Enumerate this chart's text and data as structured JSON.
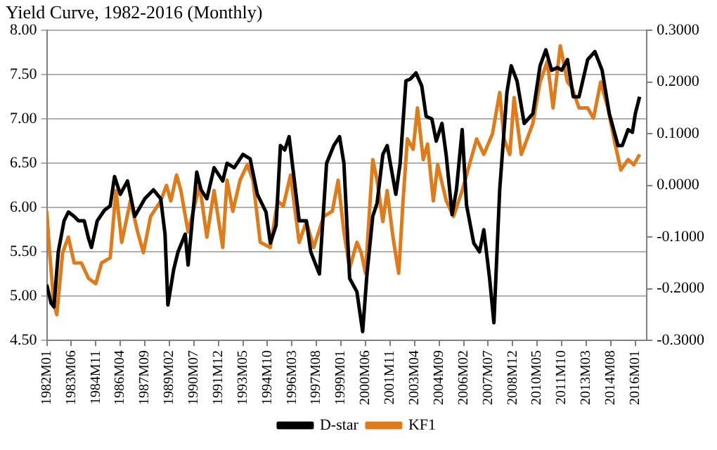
{
  "chart_data": {
    "type": "line",
    "title": "Yield Curve, 1982-2016 (Monthly)",
    "xlim": [
      "1982-01",
      "2016-09"
    ],
    "xticks": [
      {
        "value": "1982-01",
        "label": "1982M01"
      },
      {
        "value": "1983-06",
        "label": "1983M06"
      },
      {
        "value": "1984-11",
        "label": "1984M11"
      },
      {
        "value": "1986-04",
        "label": "1986M04"
      },
      {
        "value": "1987-09",
        "label": "1987M09"
      },
      {
        "value": "1989-02",
        "label": "1989M02"
      },
      {
        "value": "1990-07",
        "label": "1990M07"
      },
      {
        "value": "1991-12",
        "label": "1991M12"
      },
      {
        "value": "1993-05",
        "label": "1993M05"
      },
      {
        "value": "1994-10",
        "label": "1994M10"
      },
      {
        "value": "1996-03",
        "label": "1996M03"
      },
      {
        "value": "1997-08",
        "label": "1997M08"
      },
      {
        "value": "1999-01",
        "label": "1999M01"
      },
      {
        "value": "2000-06",
        "label": "2000M06"
      },
      {
        "value": "2001-11",
        "label": "2001M11"
      },
      {
        "value": "2003-04",
        "label": "2003M04"
      },
      {
        "value": "2004-09",
        "label": "2004M09"
      },
      {
        "value": "2006-02",
        "label": "2006M02"
      },
      {
        "value": "2007-07",
        "label": "2007M07"
      },
      {
        "value": "2008-12",
        "label": "2008M12"
      },
      {
        "value": "2010-05",
        "label": "2010M05"
      },
      {
        "value": "2011-10",
        "label": "2011M10"
      },
      {
        "value": "2013-03",
        "label": "2013M03"
      },
      {
        "value": "2014-08",
        "label": "2014M08"
      },
      {
        "value": "2016-01",
        "label": "2016M01"
      }
    ],
    "ylim": [
      4.5,
      8
    ],
    "yticks": [
      {
        "value": 4.5,
        "label": "4.50"
      },
      {
        "value": 5,
        "label": "5.00"
      },
      {
        "value": 5.5,
        "label": "5.50"
      },
      {
        "value": 6,
        "label": "6.00"
      },
      {
        "value": 6.5,
        "label": "6.50"
      },
      {
        "value": 7,
        "label": "7.00"
      },
      {
        "value": 7.5,
        "label": "7.50"
      },
      {
        "value": 8,
        "label": "8.00"
      }
    ],
    "y2lim": [
      -0.3,
      0.3
    ],
    "y2ticks": [
      {
        "value": -0.3,
        "label": "-0.3000"
      },
      {
        "value": -0.2,
        "label": "-0.2000"
      },
      {
        "value": -0.1,
        "label": "-0.1000"
      },
      {
        "value": 0,
        "label": "0.0000"
      },
      {
        "value": 0.1,
        "label": "0.1000"
      },
      {
        "value": 0.2,
        "label": "0.2000"
      },
      {
        "value": 0.3,
        "label": "0.3000"
      }
    ],
    "grid": "y",
    "legend": "bottom",
    "marker": "none",
    "line_style": "solid",
    "series": [
      {
        "name": "D-star",
        "color": "#000000",
        "x": [
          "1982-01",
          "1982-04",
          "1982-06",
          "1982-09",
          "1983-01",
          "1983-04",
          "1983-08",
          "1983-11",
          "1984-03",
          "1984-06",
          "1984-08",
          "1984-12",
          "1985-05",
          "1985-09",
          "1985-12",
          "1986-04",
          "1986-09",
          "1987-02",
          "1987-09",
          "1988-03",
          "1988-08",
          "1988-11",
          "1989-01",
          "1989-05",
          "1989-08",
          "1990-01",
          "1990-03",
          "1990-09",
          "1990-12",
          "1991-04",
          "1991-09",
          "1992-03",
          "1992-06",
          "1992-11",
          "1993-05",
          "1993-10",
          "1994-03",
          "1994-09",
          "1994-12",
          "1995-04",
          "1995-07",
          "1995-10",
          "1996-01",
          "1996-08",
          "1997-01",
          "1997-04",
          "1997-10",
          "1998-03",
          "1998-08",
          "1998-12",
          "1999-03",
          "1999-07",
          "1999-12",
          "2000-04",
          "2000-07",
          "2000-11",
          "2001-02",
          "2001-06",
          "2001-09",
          "2002-03",
          "2002-06",
          "2002-10",
          "2003-01",
          "2003-05",
          "2003-09",
          "2003-12",
          "2004-04",
          "2004-07",
          "2004-11",
          "2005-02",
          "2005-06",
          "2005-09",
          "2006-01",
          "2006-04",
          "2006-09",
          "2007-01",
          "2007-04",
          "2007-08",
          "2007-11",
          "2008-03",
          "2008-08",
          "2008-11",
          "2009-03",
          "2009-08",
          "2010-02",
          "2010-07",
          "2010-11",
          "2011-03",
          "2011-07",
          "2011-10",
          "2012-02",
          "2012-06",
          "2012-10",
          "2013-04",
          "2013-09",
          "2014-02",
          "2014-07",
          "2015-01",
          "2015-04",
          "2015-08",
          "2015-11",
          "2016-01",
          "2016-04"
        ],
        "values": [
          5.13,
          4.92,
          4.88,
          5.5,
          5.85,
          5.95,
          5.9,
          5.85,
          5.85,
          5.65,
          5.55,
          5.85,
          5.97,
          6.02,
          6.35,
          6.15,
          6.3,
          5.9,
          6.1,
          6.2,
          6.1,
          5.7,
          4.9,
          5.3,
          5.5,
          5.7,
          5.35,
          6.4,
          6.2,
          6.1,
          6.45,
          6.3,
          6.5,
          6.45,
          6.6,
          6.55,
          6.15,
          5.95,
          5.6,
          5.8,
          6.7,
          6.65,
          6.8,
          5.85,
          5.85,
          5.5,
          5.25,
          6.5,
          6.7,
          6.8,
          6.5,
          5.2,
          5.05,
          4.6,
          5.25,
          5.9,
          6.05,
          6.6,
          6.7,
          6.15,
          6.5,
          7.43,
          7.45,
          7.52,
          7.37,
          7.03,
          7.0,
          6.75,
          6.95,
          6.58,
          5.92,
          6.2,
          6.88,
          6.03,
          5.6,
          5.5,
          5.75,
          5.2,
          4.7,
          6.2,
          7.3,
          7.6,
          7.43,
          6.95,
          7.06,
          7.6,
          7.78,
          7.55,
          7.58,
          7.55,
          7.67,
          7.25,
          7.25,
          7.67,
          7.76,
          7.55,
          7.06,
          6.7,
          6.7,
          6.88,
          6.85,
          7.06,
          7.25
        ]
      },
      {
        "name": "KF1",
        "color": "#e07b1a",
        "axis": "y2",
        "x": [
          "1982-01",
          "1982-03",
          "1982-06",
          "1982-08",
          "1982-12",
          "1983-04",
          "1983-08",
          "1984-01",
          "1984-06",
          "1984-11",
          "1985-03",
          "1985-09",
          "1986-01",
          "1986-05",
          "1986-11",
          "1987-04",
          "1987-08",
          "1988-01",
          "1988-08",
          "1988-12",
          "1989-03",
          "1989-07",
          "1989-10",
          "1990-03",
          "1990-11",
          "1991-04",
          "1991-09",
          "1992-03",
          "1992-06",
          "1992-10",
          "1993-03",
          "1993-08",
          "1993-12",
          "1994-05",
          "1994-12",
          "1995-05",
          "1995-09",
          "1996-02",
          "1996-08",
          "1997-01",
          "1997-06",
          "1998-01",
          "1998-07",
          "1998-11",
          "1999-03",
          "1999-07",
          "1999-12",
          "2000-03",
          "2000-06",
          "2000-11",
          "2001-02",
          "2001-06",
          "2001-09",
          "2002-01",
          "2002-05",
          "2002-08",
          "2002-11",
          "2003-03",
          "2003-06",
          "2003-10",
          "2004-01",
          "2004-05",
          "2004-08",
          "2005-02",
          "2005-07",
          "2006-01",
          "2006-06",
          "2006-11",
          "2007-04",
          "2007-10",
          "2008-03",
          "2008-06",
          "2008-10",
          "2009-01",
          "2009-06",
          "2009-10",
          "2010-02",
          "2010-07",
          "2010-12",
          "2011-04",
          "2011-09",
          "2012-02",
          "2012-05",
          "2012-10",
          "2013-04",
          "2013-08",
          "2014-01",
          "2014-06",
          "2014-11",
          "2015-03",
          "2015-08",
          "2015-12",
          "2016-04"
        ],
        "values": [
          -0.05,
          -0.13,
          -0.23,
          -0.25,
          -0.13,
          -0.1,
          -0.15,
          -0.15,
          -0.18,
          -0.19,
          -0.15,
          -0.14,
          -0.01,
          -0.11,
          -0.03,
          -0.09,
          -0.13,
          -0.06,
          -0.03,
          0.0,
          -0.03,
          0.02,
          -0.01,
          -0.09,
          0.0,
          -0.1,
          -0.01,
          -0.12,
          0.01,
          -0.05,
          0.01,
          0.04,
          0.01,
          -0.11,
          -0.12,
          -0.03,
          -0.04,
          0.02,
          -0.11,
          -0.07,
          -0.12,
          -0.06,
          -0.05,
          0.01,
          -0.09,
          -0.16,
          -0.11,
          -0.13,
          -0.17,
          0.05,
          0.01,
          -0.07,
          -0.01,
          -0.1,
          -0.17,
          -0.03,
          0.09,
          0.07,
          0.15,
          0.05,
          0.08,
          -0.03,
          0.04,
          -0.03,
          -0.06,
          -0.01,
          0.04,
          0.09,
          0.06,
          0.1,
          0.18,
          0.09,
          0.06,
          0.17,
          0.06,
          0.09,
          0.12,
          0.2,
          0.24,
          0.15,
          0.27,
          0.2,
          0.19,
          0.15,
          0.15,
          0.13,
          0.2,
          0.15,
          0.08,
          0.03,
          0.05,
          0.04,
          0.06
        ]
      }
    ]
  }
}
